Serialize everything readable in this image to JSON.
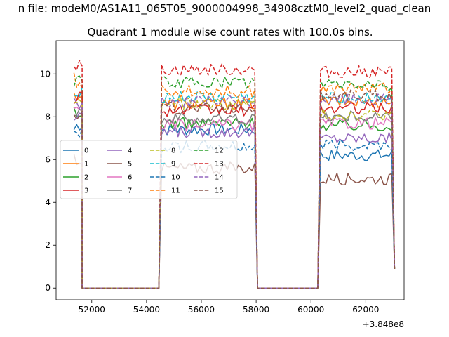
{
  "figure": {
    "suptitle": "n file: modeM0/AS1A11_065T05_9000004998_34908cztM0_level2_quad_clean",
    "title": "Quadrant 1 module wise count rates with 100.0s bins.",
    "offset_text": "+3.848e8"
  },
  "chart_data": {
    "type": "line",
    "title": "Quadrant 1 module wise count rates with 100.0s bins.",
    "xlabel": "",
    "ylabel": "",
    "xlim": [
      50700,
      63400
    ],
    "ylim": [
      -0.55,
      11.55
    ],
    "x_offset": 384800000,
    "xticks": [
      52000,
      54000,
      56000,
      58000,
      60000,
      62000
    ],
    "xtick_labels": [
      "52000",
      "54000",
      "56000",
      "58000",
      "60000",
      "62000"
    ],
    "yticks": [
      0,
      2,
      4,
      6,
      8,
      10
    ],
    "ytick_labels": [
      "0",
      "2",
      "4",
      "6",
      "8",
      "10"
    ],
    "legend_position": "center-left",
    "legend_columns": 4,
    "time_segments": [
      {
        "start": 51350,
        "end": 51650
      },
      {
        "start": 54550,
        "end": 57950
      },
      {
        "start": 60350,
        "end": 62950
      }
    ],
    "gaps": [
      {
        "start": 51650,
        "end": 54450
      },
      {
        "start": 58050,
        "end": 60250
      }
    ],
    "end_time": 63050,
    "end_value": 0.9,
    "series": [
      {
        "name": "0",
        "color": "#1f77b4",
        "dash": "solid",
        "levels": [
          7.6,
          7.4,
          6.2
        ]
      },
      {
        "name": "1",
        "color": "#ff7f0e",
        "dash": "solid",
        "levels": [
          9.0,
          8.6,
          8.7
        ]
      },
      {
        "name": "2",
        "color": "#2ca02c",
        "dash": "solid",
        "levels": [
          8.0,
          7.7,
          7.6
        ]
      },
      {
        "name": "3",
        "color": "#d62728",
        "dash": "solid",
        "levels": [
          9.0,
          8.3,
          8.4
        ]
      },
      {
        "name": "4",
        "color": "#9467bd",
        "dash": "solid",
        "levels": [
          7.9,
          7.3,
          7.0
        ]
      },
      {
        "name": "5",
        "color": "#8c564b",
        "dash": "solid",
        "levels": [
          6.0,
          5.6,
          5.1
        ]
      },
      {
        "name": "6",
        "color": "#e377c2",
        "dash": "solid",
        "levels": [
          8.4,
          7.6,
          7.7
        ]
      },
      {
        "name": "7",
        "color": "#7f7f7f",
        "dash": "solid",
        "levels": [
          8.3,
          7.9,
          8.0
        ]
      },
      {
        "name": "8",
        "color": "#bcbd22",
        "dash": "dashed",
        "levels": [
          8.6,
          8.6,
          8.1
        ]
      },
      {
        "name": "9",
        "color": "#17becf",
        "dash": "dashed",
        "levels": [
          9.2,
          8.9,
          8.9
        ]
      },
      {
        "name": "10",
        "color": "#1f77b4",
        "dash": "dashed",
        "levels": [
          7.2,
          6.6,
          6.7
        ]
      },
      {
        "name": "11",
        "color": "#ff7f0e",
        "dash": "dashed",
        "levels": [
          9.6,
          9.2,
          9.3
        ]
      },
      {
        "name": "12",
        "color": "#2ca02c",
        "dash": "dashed",
        "levels": [
          9.8,
          9.6,
          9.5
        ]
      },
      {
        "name": "13",
        "color": "#d62728",
        "dash": "dashed",
        "levels": [
          10.4,
          10.2,
          10.1
        ]
      },
      {
        "name": "14",
        "color": "#9467bd",
        "dash": "dashed",
        "levels": [
          8.6,
          8.7,
          8.8
        ]
      },
      {
        "name": "15",
        "color": "#8c564b",
        "dash": "dashed",
        "levels": [
          8.1,
          8.4,
          9.0
        ]
      }
    ],
    "noise_amplitude": 0.28
  }
}
